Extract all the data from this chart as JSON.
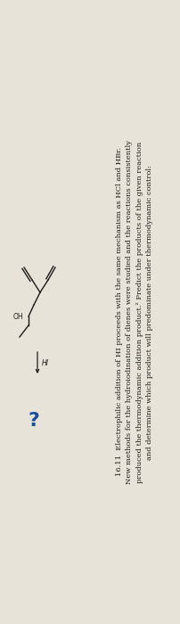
{
  "bg_color": "#e8e3d8",
  "title_text": "16.11",
  "body_text": "  Electrophilic addition of HI proceeds with the same mechanism as HCl and HBr.\nNew methods for the hydroiodination of dienes were studied and the reactions consistently\nproduced the thermodynamic addition product.² Predict the products of the given reaction\nand determine which product will predominate under thermodynamic control:",
  "reagent": "HI",
  "question_mark": "?",
  "question_color": "#1a4fa0",
  "text_color": "#1a1a1a",
  "figsize": [
    2.02,
    7.0
  ],
  "dpi": 100
}
